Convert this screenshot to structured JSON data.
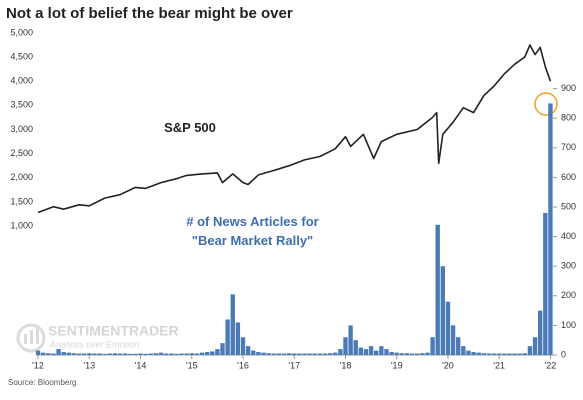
{
  "chart_data": {
    "type": "combo",
    "title": "Not a lot of belief the bear might be over",
    "source": "Source: Bloomberg",
    "watermark": {
      "brand": "SENTIMENTRADER",
      "tagline": "Analysis over Emotion"
    },
    "xlim": [
      2011.96,
      2022.05
    ],
    "xticks": [
      {
        "value": 2012,
        "label": "'12"
      },
      {
        "value": 2013,
        "label": "'13"
      },
      {
        "value": 2014,
        "label": "'14"
      },
      {
        "value": 2015,
        "label": "'15"
      },
      {
        "value": 2016,
        "label": "'16"
      },
      {
        "value": 2017,
        "label": "'17"
      },
      {
        "value": 2018,
        "label": "'18"
      },
      {
        "value": 2019,
        "label": "'19"
      },
      {
        "value": 2020,
        "label": "'20"
      },
      {
        "value": 2021,
        "label": "'21"
      },
      {
        "value": 2022,
        "label": "'22"
      }
    ],
    "ylim": [
      -1670,
      5060
    ],
    "yticks": [
      {
        "value": 1000,
        "label": "1,000"
      },
      {
        "value": 1500,
        "label": "1,500"
      },
      {
        "value": 2000,
        "label": "2,000"
      },
      {
        "value": 2500,
        "label": "2,500"
      },
      {
        "value": 3000,
        "label": "3,000"
      },
      {
        "value": 3500,
        "label": "3,500"
      },
      {
        "value": 4000,
        "label": "4,000"
      },
      {
        "value": 4500,
        "label": "4,500"
      },
      {
        "value": 5000,
        "label": "5,000"
      }
    ],
    "y2lim": [
      0,
      1098
    ],
    "y2ticks": [
      0,
      100,
      200,
      300,
      400,
      500,
      600,
      700,
      800,
      900
    ],
    "series": [
      {
        "name": "# of News Articles for \"Bear Market Rally\"",
        "type": "bar",
        "axis": "y2",
        "color": "#4a7ab8",
        "x": [
          2012.0,
          2012.1,
          2012.2,
          2012.3,
          2012.4,
          2012.5,
          2012.6,
          2012.7,
          2012.8,
          2012.9,
          2013.0,
          2013.1,
          2013.2,
          2013.3,
          2013.4,
          2013.5,
          2013.6,
          2013.7,
          2013.8,
          2013.9,
          2014.0,
          2014.1,
          2014.2,
          2014.3,
          2014.4,
          2014.5,
          2014.6,
          2014.7,
          2014.8,
          2014.9,
          2015.0,
          2015.1,
          2015.2,
          2015.3,
          2015.4,
          2015.5,
          2015.6,
          2015.7,
          2015.8,
          2015.9,
          2016.0,
          2016.1,
          2016.2,
          2016.3,
          2016.4,
          2016.5,
          2016.6,
          2016.7,
          2016.8,
          2016.9,
          2017.0,
          2017.1,
          2017.2,
          2017.3,
          2017.4,
          2017.5,
          2017.6,
          2017.7,
          2017.8,
          2017.9,
          2018.0,
          2018.1,
          2018.2,
          2018.3,
          2018.4,
          2018.5,
          2018.6,
          2018.7,
          2018.8,
          2018.9,
          2019.0,
          2019.1,
          2019.2,
          2019.3,
          2019.4,
          2019.5,
          2019.6,
          2019.7,
          2019.8,
          2019.9,
          2020.0,
          2020.1,
          2020.2,
          2020.3,
          2020.4,
          2020.5,
          2020.6,
          2020.7,
          2020.8,
          2020.9,
          2021.0,
          2021.1,
          2021.2,
          2021.3,
          2021.4,
          2021.5,
          2021.6,
          2021.7,
          2021.8,
          2021.9,
          2022.0
        ],
        "values": [
          15,
          8,
          6,
          5,
          20,
          10,
          8,
          6,
          5,
          5,
          6,
          5,
          5,
          4,
          5,
          6,
          5,
          5,
          4,
          4,
          5,
          4,
          5,
          6,
          8,
          5,
          5,
          4,
          5,
          5,
          6,
          5,
          8,
          10,
          12,
          20,
          40,
          120,
          205,
          110,
          60,
          30,
          15,
          10,
          8,
          6,
          5,
          5,
          5,
          6,
          5,
          5,
          5,
          5,
          5,
          5,
          5,
          6,
          8,
          20,
          60,
          100,
          50,
          25,
          20,
          30,
          15,
          30,
          20,
          10,
          8,
          6,
          6,
          5,
          5,
          6,
          8,
          60,
          440,
          300,
          180,
          100,
          60,
          30,
          15,
          10,
          8,
          6,
          5,
          5,
          5,
          5,
          5,
          5,
          5,
          6,
          30,
          60,
          150,
          480,
          850
        ]
      },
      {
        "name": "S&P 500",
        "type": "line",
        "axis": "y",
        "color": "#222222",
        "x": [
          2012.0,
          2012.3,
          2012.5,
          2012.8,
          2013.0,
          2013.3,
          2013.6,
          2013.9,
          2014.1,
          2014.4,
          2014.7,
          2014.9,
          2015.2,
          2015.5,
          2015.6,
          2015.8,
          2016.0,
          2016.1,
          2016.3,
          2016.6,
          2016.9,
          2017.2,
          2017.5,
          2017.8,
          2018.0,
          2018.1,
          2018.35,
          2018.55,
          2018.7,
          2019.0,
          2019.4,
          2019.7,
          2019.78,
          2019.82,
          2019.9,
          2020.1,
          2020.3,
          2020.5,
          2020.7,
          2020.9,
          2021.1,
          2021.3,
          2021.5,
          2021.6,
          2021.7,
          2021.8,
          2021.9,
          2022.0
        ],
        "values": [
          1280,
          1400,
          1350,
          1440,
          1420,
          1580,
          1650,
          1800,
          1780,
          1900,
          1980,
          2050,
          2080,
          2100,
          1900,
          2080,
          1900,
          1860,
          2060,
          2150,
          2250,
          2370,
          2440,
          2600,
          2850,
          2650,
          2900,
          2400,
          2750,
          2900,
          3000,
          3250,
          3350,
          2300,
          2900,
          3150,
          3450,
          3350,
          3700,
          3900,
          4150,
          4350,
          4500,
          4750,
          4550,
          4700,
          4300,
          4000
        ]
      }
    ]
  }
}
